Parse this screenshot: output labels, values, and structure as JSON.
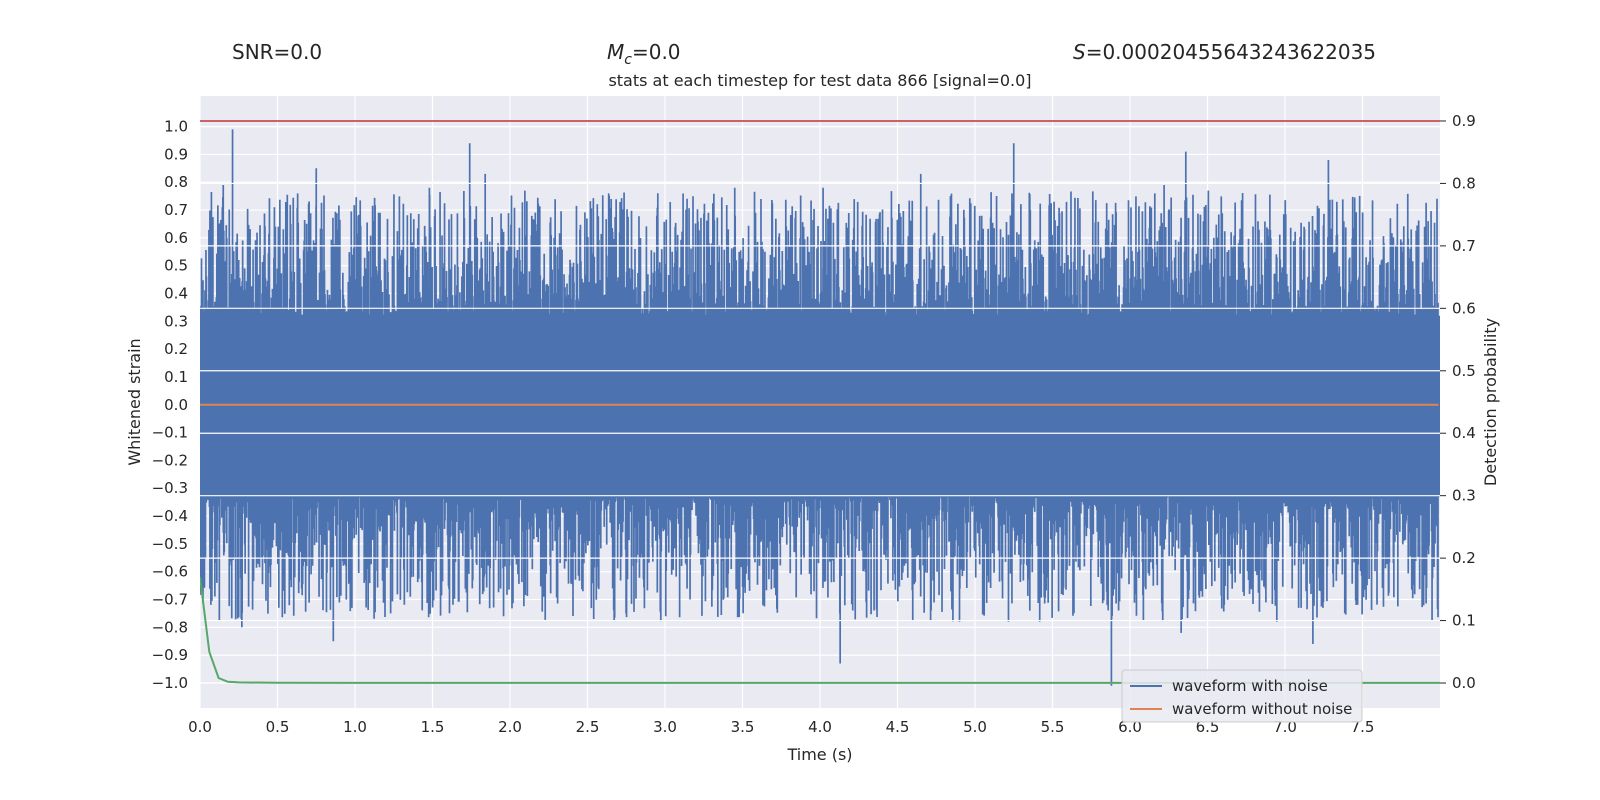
{
  "header": {
    "snr_label": "SNR=0.0",
    "mc_symbol": "M",
    "mc_sub": "c",
    "mc_value": "=0.0",
    "s_symbol": "S",
    "s_value": "=0.00020455643243622035"
  },
  "chart_data": {
    "type": "line",
    "title": "stats at each timestep for test data 866 [signal=0.0]",
    "xlabel": "Time (s)",
    "ylabel": "Whitened strain",
    "y2label": "Detection probability",
    "xlim": [
      0.0,
      8.0
    ],
    "ylim": [
      -1.09,
      1.11
    ],
    "y2lim": [
      -0.04,
      0.94
    ],
    "xticks": [
      "0.0",
      "0.5",
      "1.0",
      "1.5",
      "2.0",
      "2.5",
      "3.0",
      "3.5",
      "4.0",
      "4.5",
      "5.0",
      "5.5",
      "6.0",
      "6.5",
      "7.0",
      "7.5"
    ],
    "xtick_values": [
      0.0,
      0.5,
      1.0,
      1.5,
      2.0,
      2.5,
      3.0,
      3.5,
      4.0,
      4.5,
      5.0,
      5.5,
      6.0,
      6.5,
      7.0,
      7.5
    ],
    "yticks": [
      "1.0",
      "0.9",
      "0.8",
      "0.7",
      "0.6",
      "0.5",
      "0.4",
      "0.3",
      "0.2",
      "0.1",
      "0.0",
      "−0.1",
      "−0.2",
      "−0.3",
      "−0.4",
      "−0.5",
      "−0.6",
      "−0.7",
      "−0.8",
      "−0.9",
      "−1.0"
    ],
    "ytick_values": [
      1.0,
      0.9,
      0.8,
      0.7,
      0.6,
      0.5,
      0.4,
      0.3,
      0.2,
      0.1,
      0.0,
      -0.1,
      -0.2,
      -0.3,
      -0.4,
      -0.5,
      -0.6,
      -0.7,
      -0.8,
      -0.9,
      -1.0
    ],
    "y2ticks": [
      "0.9",
      "0.8",
      "0.7",
      "0.6",
      "0.5",
      "0.4",
      "0.3",
      "0.2",
      "0.1",
      "0.0"
    ],
    "y2tick_values": [
      0.9,
      0.8,
      0.7,
      0.6,
      0.5,
      0.4,
      0.3,
      0.2,
      0.1,
      0.0
    ],
    "legend": {
      "position": "lower right",
      "entries": [
        {
          "name": "waveform with noise",
          "color": "#4c72b0"
        },
        {
          "name": "waveform without noise",
          "color": "#dd8452"
        }
      ]
    },
    "series": [
      {
        "name": "waveform with noise",
        "color": "#4c72b0",
        "duration_s": 7.99,
        "band": [
          -0.33,
          0.32
        ],
        "peaks": [
          {
            "x": 0.21,
            "y": 0.99
          },
          {
            "x": 0.15,
            "y": 0.79
          },
          {
            "x": 0.75,
            "y": 0.85
          },
          {
            "x": 1.74,
            "y": 0.94
          },
          {
            "x": 1.84,
            "y": 0.83
          },
          {
            "x": 5.25,
            "y": 0.94
          },
          {
            "x": 6.36,
            "y": 0.91
          },
          {
            "x": 7.28,
            "y": 0.88
          },
          {
            "x": 3.45,
            "y": 0.78
          },
          {
            "x": 4.02,
            "y": 0.78
          },
          {
            "x": 4.65,
            "y": 0.83
          },
          {
            "x": 6.22,
            "y": 0.79
          },
          {
            "x": 1.48,
            "y": 0.78
          },
          {
            "x": 0.63,
            "y": 0.76
          }
        ],
        "troughs": [
          {
            "x": 5.88,
            "y": -1.01
          },
          {
            "x": 4.13,
            "y": -0.93
          },
          {
            "x": 0.86,
            "y": -0.85
          },
          {
            "x": 7.18,
            "y": -0.86
          },
          {
            "x": 6.33,
            "y": -0.82
          },
          {
            "x": 0.27,
            "y": -0.8
          },
          {
            "x": 4.9,
            "y": -0.78
          },
          {
            "x": 2.54,
            "y": -0.77
          },
          {
            "x": 1.23,
            "y": -0.75
          },
          {
            "x": 0.98,
            "y": -0.73
          }
        ]
      },
      {
        "name": "waveform without noise",
        "color": "#dd8452",
        "x": [
          0.0,
          7.99
        ],
        "y": [
          0.0,
          0.0
        ]
      },
      {
        "name": "detection probability",
        "axis": "right",
        "color": "#55a868",
        "x": [
          0.0,
          0.06,
          0.12,
          0.18,
          0.25,
          0.5,
          1.0,
          8.0
        ],
        "y": [
          0.17,
          0.05,
          0.008,
          0.002,
          0.001,
          0.0003,
          0.0002,
          0.0002
        ]
      },
      {
        "name": "threshold",
        "axis": "right",
        "color": "#c44e52",
        "x": [
          0.0,
          8.0
        ],
        "y": [
          0.9,
          0.9
        ]
      }
    ]
  }
}
